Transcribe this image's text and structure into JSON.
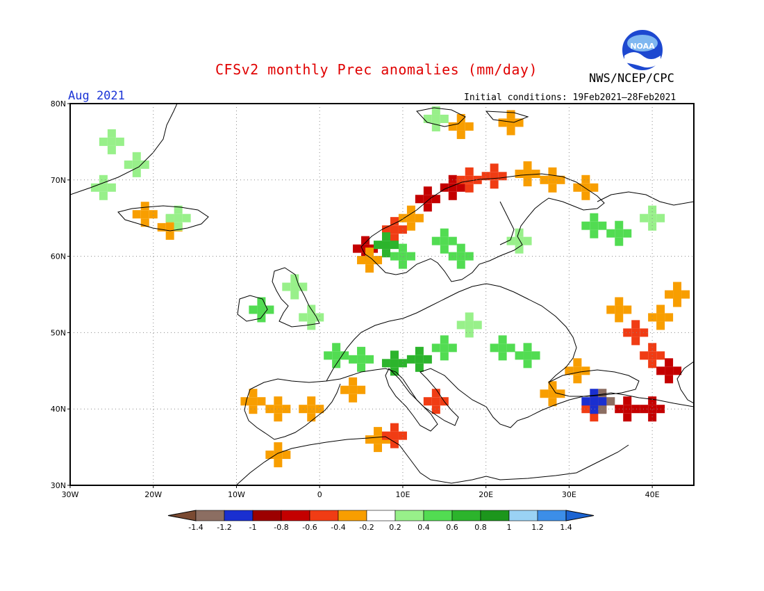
{
  "header": {
    "title": "CFSv2 monthly Prec anomalies (mm/day)",
    "month": "Aug 2021",
    "initial_conditions": "Initial conditions: 19Feb2021–28Feb2021",
    "agency": "NWS/NCEP/CPC",
    "logo_text": "NOAA"
  },
  "map": {
    "lon_range": [
      -30,
      45
    ],
    "lat_range": [
      30,
      80
    ],
    "grid": "dotted",
    "lat_labels": [
      "80N",
      "70N",
      "60N",
      "50N",
      "40N",
      "30N"
    ],
    "lon_labels": [
      "30W",
      "20W",
      "10W",
      "0",
      "10E",
      "20E",
      "30E",
      "40E"
    ]
  },
  "legend": {
    "ticks": [
      "-1.4",
      "-1.2",
      "-1",
      "-0.8",
      "-0.6",
      "-0.4",
      "-0.2",
      "0.2",
      "0.4",
      "0.6",
      "0.8",
      "1",
      "1.2",
      "1.4"
    ],
    "colors": [
      "#7a4a32",
      "#8c6e62",
      "#1a2fd0",
      "#9c0000",
      "#c40000",
      "#f03c14",
      "#f89e00",
      "#ffffff",
      "#98f08a",
      "#52dc52",
      "#2cb42c",
      "#1c961c",
      "#9ad2f4",
      "#3c8ee8",
      "#1c64d2"
    ]
  },
  "anomalies": [
    {
      "lon": -25,
      "lat": 75,
      "v": 0.3
    },
    {
      "lon": -22,
      "lat": 72,
      "v": 0.3
    },
    {
      "lon": -26,
      "lat": 69,
      "v": 0.3
    },
    {
      "lon": -21,
      "lat": 65.5,
      "v": -0.3
    },
    {
      "lon": -18,
      "lat": 63.8,
      "v": -0.3
    },
    {
      "lon": -17,
      "lat": 65,
      "v": 0.3
    },
    {
      "lon": 14,
      "lat": 78,
      "v": 0.3
    },
    {
      "lon": 17,
      "lat": 77,
      "v": -0.3
    },
    {
      "lon": 23,
      "lat": 77.5,
      "v": -0.3
    },
    {
      "lon": 13,
      "lat": 67.5,
      "v": -0.7
    },
    {
      "lon": 16,
      "lat": 69,
      "v": -0.7
    },
    {
      "lon": 18,
      "lat": 70,
      "v": -0.6
    },
    {
      "lon": 21,
      "lat": 70.5,
      "v": -0.5
    },
    {
      "lon": 25,
      "lat": 70.8,
      "v": -0.4
    },
    {
      "lon": 28,
      "lat": 70,
      "v": -0.3
    },
    {
      "lon": 32,
      "lat": 69,
      "v": -0.3
    },
    {
      "lon": 11,
      "lat": 65,
      "v": -0.4
    },
    {
      "lon": 9,
      "lat": 63.5,
      "v": -0.5
    },
    {
      "lon": 5.5,
      "lat": 61,
      "v": -0.7
    },
    {
      "lon": 6,
      "lat": 59.5,
      "v": -0.3
    },
    {
      "lon": 8,
      "lat": 61.5,
      "v": 0.6
    },
    {
      "lon": 10,
      "lat": 60,
      "v": 0.5
    },
    {
      "lon": 15,
      "lat": 62,
      "v": 0.4
    },
    {
      "lon": 17,
      "lat": 60,
      "v": 0.4
    },
    {
      "lon": 24,
      "lat": 62,
      "v": 0.3
    },
    {
      "lon": 33,
      "lat": 64,
      "v": 0.5
    },
    {
      "lon": 36,
      "lat": 63,
      "v": 0.4
    },
    {
      "lon": 40,
      "lat": 65,
      "v": 0.3
    },
    {
      "lon": -7,
      "lat": 53,
      "v": 0.4
    },
    {
      "lon": -3,
      "lat": 56,
      "v": 0.3
    },
    {
      "lon": -1,
      "lat": 52,
      "v": 0.3
    },
    {
      "lon": 2,
      "lat": 47,
      "v": 0.4
    },
    {
      "lon": 5,
      "lat": 46.5,
      "v": 0.5
    },
    {
      "lon": 9,
      "lat": 46,
      "v": 0.6
    },
    {
      "lon": 12,
      "lat": 46.5,
      "v": 0.7
    },
    {
      "lon": 15,
      "lat": 48,
      "v": 0.4
    },
    {
      "lon": 22,
      "lat": 48,
      "v": 0.4
    },
    {
      "lon": 25,
      "lat": 47,
      "v": 0.5
    },
    {
      "lon": 18,
      "lat": 51,
      "v": 0.3
    },
    {
      "lon": -8,
      "lat": 41,
      "v": -0.3
    },
    {
      "lon": -5,
      "lat": 40,
      "v": -0.3
    },
    {
      "lon": -1,
      "lat": 40,
      "v": -0.3
    },
    {
      "lon": 4,
      "lat": 42.5,
      "v": -0.4
    },
    {
      "lon": 7,
      "lat": 36,
      "v": -0.3
    },
    {
      "lon": 9,
      "lat": 36.5,
      "v": -0.5
    },
    {
      "lon": -5,
      "lat": 34,
      "v": -0.3
    },
    {
      "lon": 14,
      "lat": 41,
      "v": -0.5
    },
    {
      "lon": 28,
      "lat": 42,
      "v": -0.3
    },
    {
      "lon": 31,
      "lat": 45,
      "v": -0.3
    },
    {
      "lon": 36,
      "lat": 53,
      "v": -0.3
    },
    {
      "lon": 38,
      "lat": 50,
      "v": -0.5
    },
    {
      "lon": 41,
      "lat": 52,
      "v": -0.4
    },
    {
      "lon": 43,
      "lat": 55,
      "v": -0.3
    },
    {
      "lon": 40,
      "lat": 47,
      "v": -0.5
    },
    {
      "lon": 42,
      "lat": 45,
      "v": -0.7
    },
    {
      "lon": 33,
      "lat": 40,
      "v": -0.6
    },
    {
      "lon": 37,
      "lat": 40,
      "v": -0.7
    },
    {
      "lon": 40,
      "lat": 40,
      "v": -0.8
    },
    {
      "lon": 34,
      "lat": 41,
      "v": -1.3
    },
    {
      "lon": 33,
      "lat": 41,
      "v": -1.1
    }
  ]
}
